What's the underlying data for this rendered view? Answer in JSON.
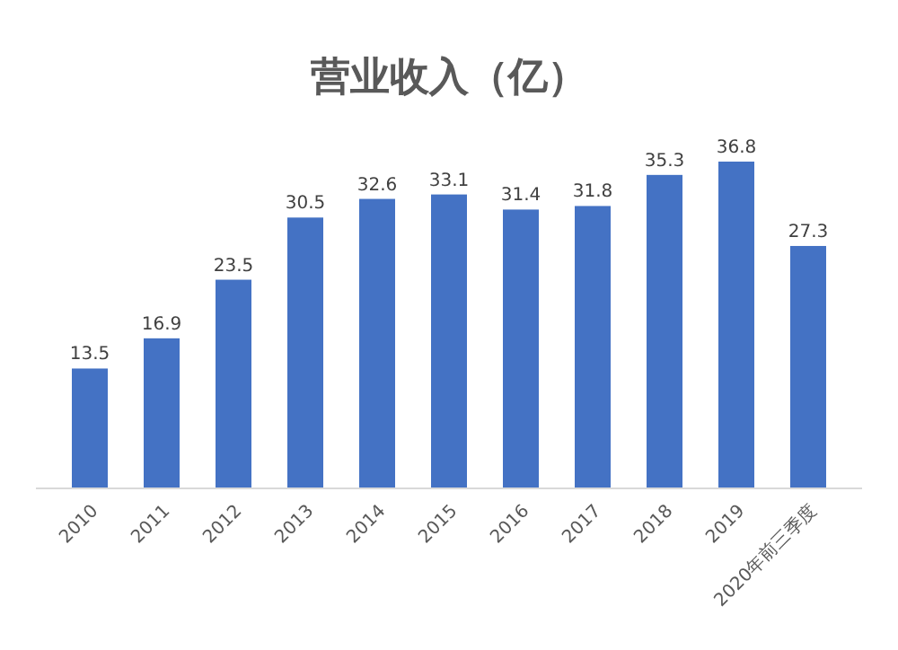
{
  "chart_data": {
    "type": "bar",
    "title": "营业收入（亿）",
    "categories": [
      "2010",
      "2011",
      "2012",
      "2013",
      "2014",
      "2015",
      "2016",
      "2017",
      "2018",
      "2019",
      "2020年前三季度"
    ],
    "values": [
      13.5,
      16.9,
      23.5,
      30.5,
      32.6,
      33.1,
      31.4,
      31.8,
      35.3,
      36.8,
      27.3
    ],
    "color": "#4472c4",
    "data_labels": true
  }
}
